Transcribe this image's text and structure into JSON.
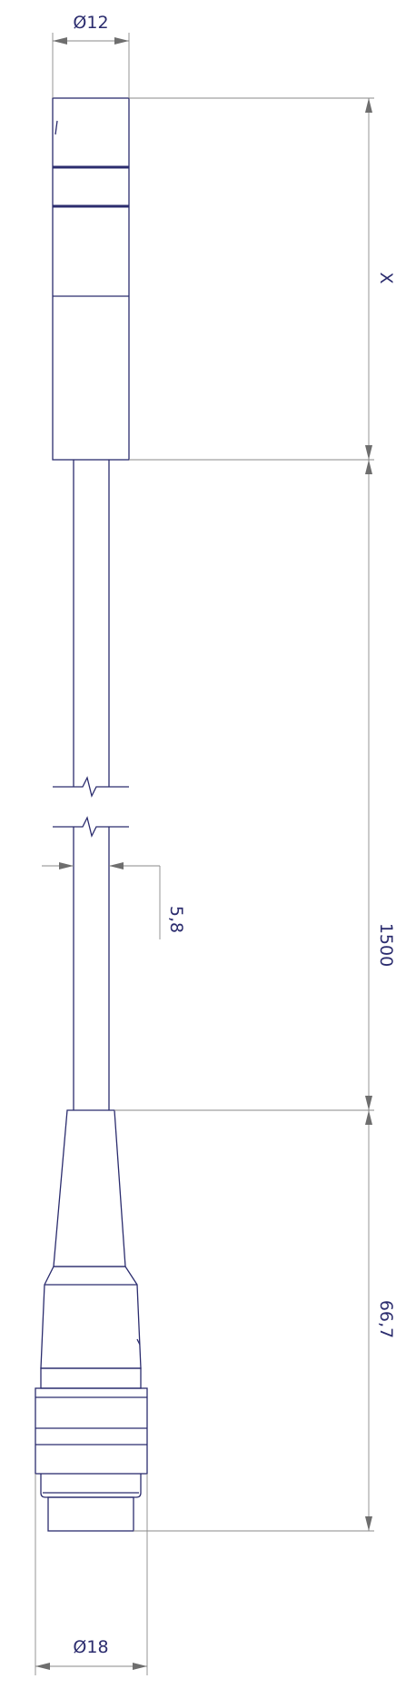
{
  "dimensions": {
    "sensor_diameter": "Ø12",
    "sensor_length": "X",
    "cable_length": "1500",
    "cable_diameter": "5,8",
    "connector_length": "66,7",
    "connector_diameter": "Ø18"
  },
  "colors": {
    "part_outline": "#2b2c6e",
    "dimension_line": "#8a8a8a",
    "arrow": "#6e6e6e",
    "label": "#2b2c6e"
  }
}
